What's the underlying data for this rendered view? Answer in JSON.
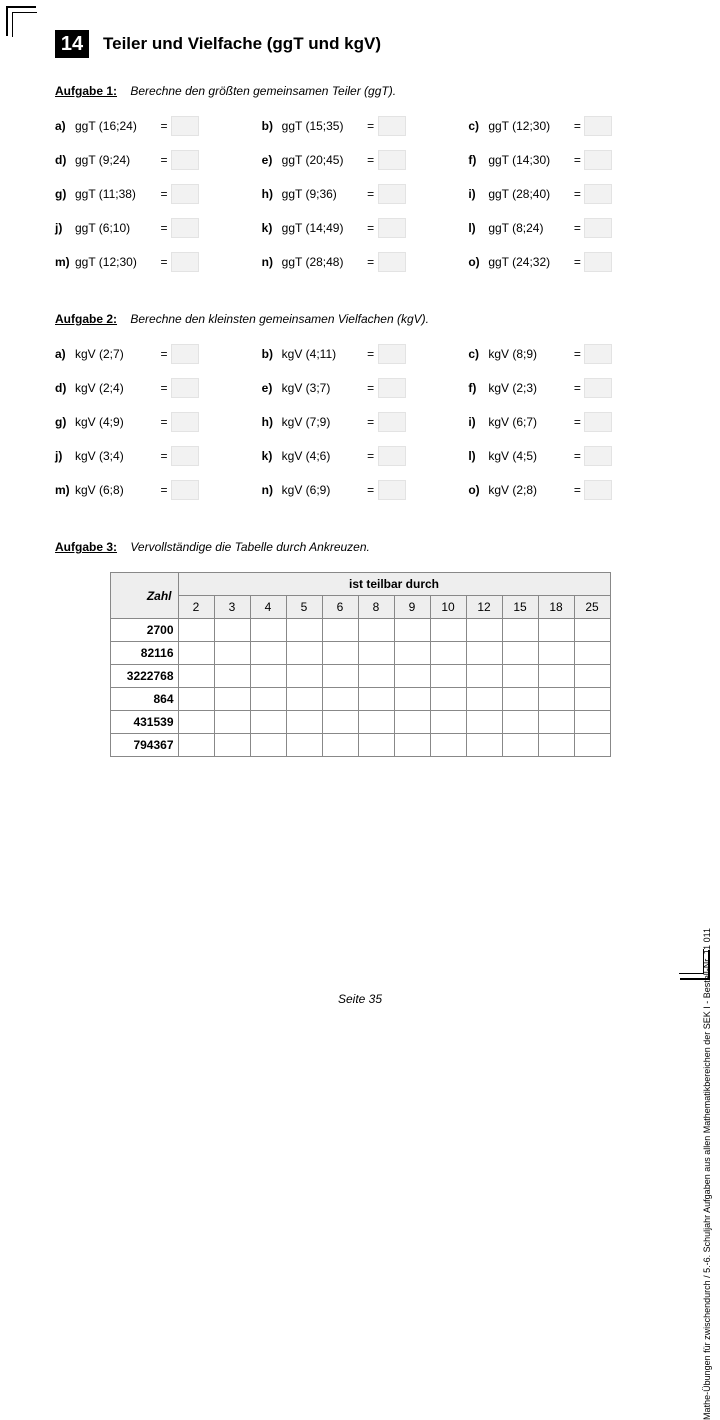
{
  "chapter": "14",
  "title": "Teiler und Vielfache  (ggT und kgV)",
  "task1": {
    "label": "Aufgabe 1:",
    "instr": "Berechne den größten gemeinsamen Teiler (ggT).",
    "items": [
      {
        "l": "a)",
        "e": "ggT (16;24)"
      },
      {
        "l": "b)",
        "e": "ggT (15;35)"
      },
      {
        "l": "c)",
        "e": "ggT (12;30)"
      },
      {
        "l": "d)",
        "e": "ggT (9;24)"
      },
      {
        "l": "e)",
        "e": "ggT (20;45)"
      },
      {
        "l": "f)",
        "e": "ggT (14;30)"
      },
      {
        "l": "g)",
        "e": "ggT (11;38)"
      },
      {
        "l": "h)",
        "e": "ggT (9;36)"
      },
      {
        "l": "i)",
        "e": "ggT (28;40)"
      },
      {
        "l": "j)",
        "e": "ggT (6;10)"
      },
      {
        "l": "k)",
        "e": "ggT (14;49)"
      },
      {
        "l": "l)",
        "e": "ggT (8;24)"
      },
      {
        "l": "m)",
        "e": "ggT (12;30)"
      },
      {
        "l": "n)",
        "e": "ggT (28;48)"
      },
      {
        "l": "o)",
        "e": "ggT (24;32)"
      }
    ]
  },
  "task2": {
    "label": "Aufgabe 2:",
    "instr": "Berechne den kleinsten gemeinsamen Vielfachen (kgV).",
    "items": [
      {
        "l": "a)",
        "e": "kgV (2;7)"
      },
      {
        "l": "b)",
        "e": "kgV (4;11)"
      },
      {
        "l": "c)",
        "e": "kgV (8;9)"
      },
      {
        "l": "d)",
        "e": "kgV (2;4)"
      },
      {
        "l": "e)",
        "e": "kgV (3;7)"
      },
      {
        "l": "f)",
        "e": "kgV (2;3)"
      },
      {
        "l": "g)",
        "e": "kgV (4;9)"
      },
      {
        "l": "h)",
        "e": "kgV (7;9)"
      },
      {
        "l": "i)",
        "e": "kgV (6;7)"
      },
      {
        "l": "j)",
        "e": "kgV (3;4)"
      },
      {
        "l": "k)",
        "e": "kgV (4;6)"
      },
      {
        "l": "l)",
        "e": "kgV (4;5)"
      },
      {
        "l": "m)",
        "e": "kgV (6;8)"
      },
      {
        "l": "n)",
        "e": "kgV (6;9)"
      },
      {
        "l": "o)",
        "e": "kgV (2;8)"
      }
    ]
  },
  "task3": {
    "label": "Aufgabe 3:",
    "instr": "Vervollständige die Tabelle durch Ankreuzen.",
    "col_label": "Zahl",
    "header": "ist teilbar durch",
    "divisors": [
      "2",
      "3",
      "4",
      "5",
      "6",
      "8",
      "9",
      "10",
      "12",
      "15",
      "18",
      "25"
    ],
    "numbers": [
      "2700",
      "82116",
      "3222768",
      "864",
      "431539",
      "794367"
    ]
  },
  "footer": "Seite 35",
  "side": "Mathe-Übungen für zwischendurch / 5.-6. Schuljahr\nAufgaben aus allen Mathematikbereichen der SEK I   -   Bestell-Nr. 11 011",
  "eq": "="
}
